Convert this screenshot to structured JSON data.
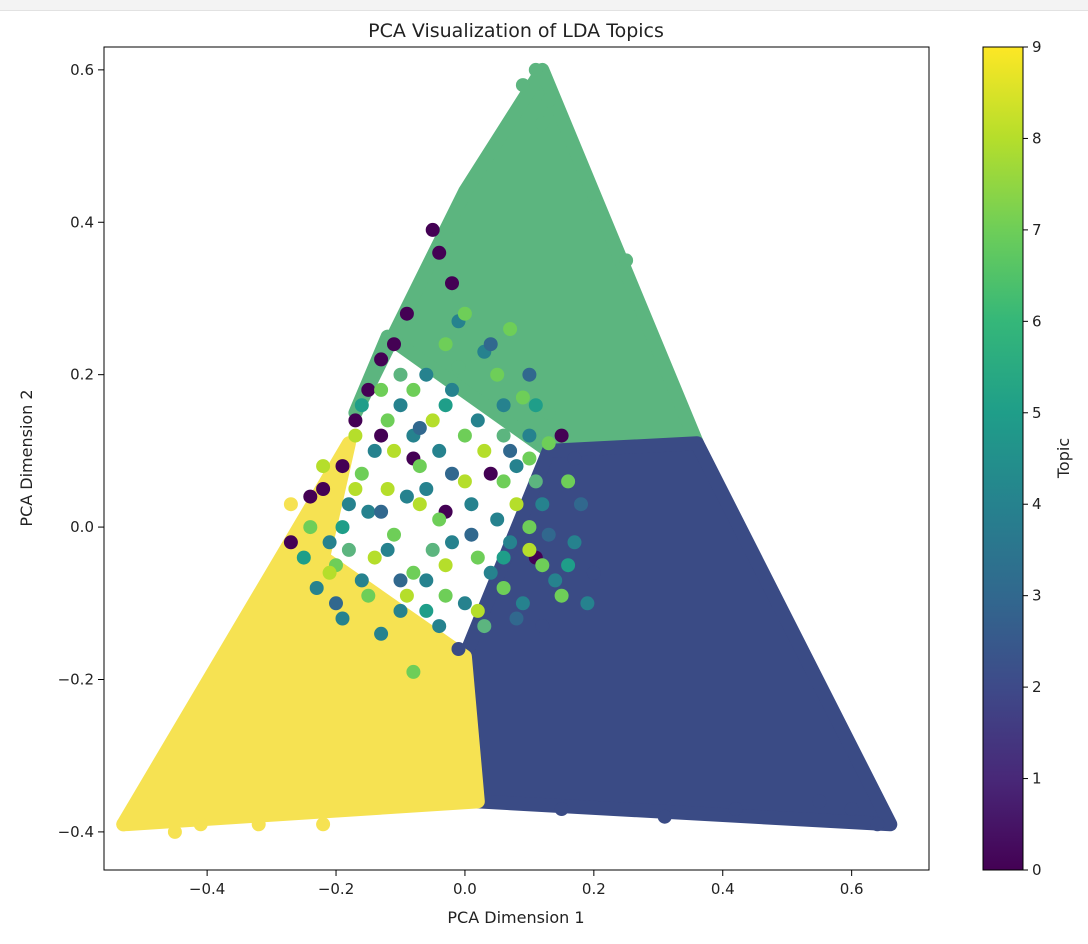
{
  "chart_data": {
    "type": "scatter",
    "title": "PCA Visualization of LDA Topics",
    "xlabel": "PCA Dimension 1",
    "ylabel": "PCA Dimension 2",
    "xlim": [
      -0.56,
      0.72
    ],
    "ylim": [
      -0.45,
      0.63
    ],
    "x_ticks": [
      -0.4,
      -0.2,
      0.0,
      0.2,
      0.4,
      0.6
    ],
    "x_tick_labels": [
      "−0.4",
      "−0.2",
      "0.0",
      "0.2",
      "0.4",
      "0.6"
    ],
    "y_ticks": [
      -0.4,
      -0.2,
      0.0,
      0.2,
      0.4,
      0.6
    ],
    "y_tick_labels": [
      "−0.4",
      "−0.2",
      "0.0",
      "0.2",
      "0.4",
      "0.6"
    ],
    "grid": false,
    "colormap": "viridis",
    "colorbar": {
      "label": "Topic",
      "range": [
        0,
        9
      ],
      "ticks": [
        0,
        1,
        2,
        3,
        4,
        5,
        6,
        7,
        8,
        9
      ],
      "tick_labels": [
        "0",
        "1",
        "2",
        "3",
        "4",
        "5",
        "6",
        "7",
        "8",
        "9"
      ]
    },
    "regions": [
      {
        "topic": 6,
        "polygon": [
          [
            0.12,
            0.6
          ],
          [
            0.36,
            0.11
          ],
          [
            0.13,
            0.1
          ],
          [
            -0.12,
            0.25
          ],
          [
            -0.17,
            0.15
          ],
          [
            0.0,
            0.44
          ]
        ]
      },
      {
        "topic": 2,
        "polygon": [
          [
            0.36,
            0.11
          ],
          [
            0.66,
            -0.39
          ],
          [
            0.02,
            -0.36
          ],
          [
            0.0,
            -0.17
          ],
          [
            0.13,
            0.1
          ]
        ]
      },
      {
        "topic": 9,
        "polygon": [
          [
            -0.53,
            -0.39
          ],
          [
            0.02,
            -0.36
          ],
          [
            0.0,
            -0.17
          ],
          [
            -0.22,
            -0.04
          ],
          [
            -0.18,
            0.11
          ]
        ]
      }
    ],
    "mixed_points": [
      {
        "x": -0.05,
        "y": 0.39,
        "topic": 0
      },
      {
        "x": -0.04,
        "y": 0.36,
        "topic": 0
      },
      {
        "x": -0.02,
        "y": 0.32,
        "topic": 0
      },
      {
        "x": -0.09,
        "y": 0.28,
        "topic": 0
      },
      {
        "x": -0.11,
        "y": 0.24,
        "topic": 0
      },
      {
        "x": -0.13,
        "y": 0.22,
        "topic": 0
      },
      {
        "x": -0.15,
        "y": 0.18,
        "topic": 0
      },
      {
        "x": -0.17,
        "y": 0.14,
        "topic": 0
      },
      {
        "x": -0.19,
        "y": 0.08,
        "topic": 0
      },
      {
        "x": -0.22,
        "y": 0.05,
        "topic": 0
      },
      {
        "x": -0.24,
        "y": 0.04,
        "topic": 0
      },
      {
        "x": -0.27,
        "y": -0.02,
        "topic": 0
      },
      {
        "x": -0.08,
        "y": 0.09,
        "topic": 0
      },
      {
        "x": 0.04,
        "y": 0.07,
        "topic": 0
      },
      {
        "x": -0.03,
        "y": 0.02,
        "topic": 0
      },
      {
        "x": 0.11,
        "y": -0.04,
        "topic": 0
      },
      {
        "x": -0.13,
        "y": 0.12,
        "topic": 0
      },
      {
        "x": 0.15,
        "y": 0.12,
        "topic": 0
      },
      {
        "x": -0.01,
        "y": 0.27,
        "topic": 4
      },
      {
        "x": 0.03,
        "y": 0.23,
        "topic": 4
      },
      {
        "x": -0.06,
        "y": 0.2,
        "topic": 4
      },
      {
        "x": -0.1,
        "y": 0.16,
        "topic": 4
      },
      {
        "x": 0.02,
        "y": 0.14,
        "topic": 4
      },
      {
        "x": -0.14,
        "y": 0.1,
        "topic": 4
      },
      {
        "x": -0.04,
        "y": 0.1,
        "topic": 4
      },
      {
        "x": 0.08,
        "y": 0.08,
        "topic": 4
      },
      {
        "x": -0.18,
        "y": 0.03,
        "topic": 4
      },
      {
        "x": -0.09,
        "y": 0.04,
        "topic": 4
      },
      {
        "x": 0.01,
        "y": 0.03,
        "topic": 4
      },
      {
        "x": 0.12,
        "y": 0.03,
        "topic": 4
      },
      {
        "x": -0.21,
        "y": -0.02,
        "topic": 4
      },
      {
        "x": -0.12,
        "y": -0.03,
        "topic": 4
      },
      {
        "x": -0.02,
        "y": -0.02,
        "topic": 4
      },
      {
        "x": 0.07,
        "y": -0.02,
        "topic": 4
      },
      {
        "x": 0.17,
        "y": -0.02,
        "topic": 4
      },
      {
        "x": -0.16,
        "y": -0.07,
        "topic": 4
      },
      {
        "x": -0.06,
        "y": -0.07,
        "topic": 4
      },
      {
        "x": 0.04,
        "y": -0.06,
        "topic": 4
      },
      {
        "x": 0.14,
        "y": -0.07,
        "topic": 4
      },
      {
        "x": -0.23,
        "y": -0.08,
        "topic": 4
      },
      {
        "x": -0.1,
        "y": -0.11,
        "topic": 4
      },
      {
        "x": 0.0,
        "y": -0.1,
        "topic": 4
      },
      {
        "x": 0.09,
        "y": -0.1,
        "topic": 4
      },
      {
        "x": -0.19,
        "y": -0.12,
        "topic": 4
      },
      {
        "x": 0.19,
        "y": -0.1,
        "topic": 4
      },
      {
        "x": -0.04,
        "y": -0.13,
        "topic": 4
      },
      {
        "x": -0.13,
        "y": -0.14,
        "topic": 4
      },
      {
        "x": -0.06,
        "y": 0.05,
        "topic": 4
      },
      {
        "x": 0.06,
        "y": 0.16,
        "topic": 4
      },
      {
        "x": -0.08,
        "y": 0.12,
        "topic": 4
      },
      {
        "x": 0.1,
        "y": 0.12,
        "topic": 4
      },
      {
        "x": -0.15,
        "y": 0.02,
        "topic": 4
      },
      {
        "x": 0.05,
        "y": 0.01,
        "topic": 4
      },
      {
        "x": -0.02,
        "y": 0.18,
        "topic": 4
      },
      {
        "x": 0.0,
        "y": 0.28,
        "topic": 7
      },
      {
        "x": -0.03,
        "y": 0.24,
        "topic": 7
      },
      {
        "x": 0.05,
        "y": 0.2,
        "topic": 7
      },
      {
        "x": -0.08,
        "y": 0.18,
        "topic": 7
      },
      {
        "x": 0.09,
        "y": 0.17,
        "topic": 7
      },
      {
        "x": -0.12,
        "y": 0.14,
        "topic": 7
      },
      {
        "x": 0.0,
        "y": 0.12,
        "topic": 7
      },
      {
        "x": 0.13,
        "y": 0.11,
        "topic": 7
      },
      {
        "x": -0.07,
        "y": 0.08,
        "topic": 7
      },
      {
        "x": 0.06,
        "y": 0.06,
        "topic": 7
      },
      {
        "x": -0.16,
        "y": 0.07,
        "topic": 7
      },
      {
        "x": 0.16,
        "y": 0.06,
        "topic": 7
      },
      {
        "x": -0.04,
        "y": 0.01,
        "topic": 7
      },
      {
        "x": 0.1,
        "y": 0.0,
        "topic": 7
      },
      {
        "x": -0.11,
        "y": -0.01,
        "topic": 7
      },
      {
        "x": 0.02,
        "y": -0.04,
        "topic": 7
      },
      {
        "x": -0.2,
        "y": -0.05,
        "topic": 7
      },
      {
        "x": 0.12,
        "y": -0.05,
        "topic": 7
      },
      {
        "x": -0.08,
        "y": -0.06,
        "topic": 7
      },
      {
        "x": 0.06,
        "y": -0.08,
        "topic": 7
      },
      {
        "x": -0.15,
        "y": -0.09,
        "topic": 7
      },
      {
        "x": -0.03,
        "y": -0.09,
        "topic": 7
      },
      {
        "x": 0.15,
        "y": -0.09,
        "topic": 7
      },
      {
        "x": -0.24,
        "y": 0.0,
        "topic": 7
      },
      {
        "x": -0.08,
        "y": -0.19,
        "topic": 7
      },
      {
        "x": 0.1,
        "y": 0.09,
        "topic": 7
      },
      {
        "x": 0.07,
        "y": 0.26,
        "topic": 7
      },
      {
        "x": -0.13,
        "y": 0.18,
        "topic": 7
      },
      {
        "x": -0.05,
        "y": 0.14,
        "topic": 8
      },
      {
        "x": -0.11,
        "y": 0.1,
        "topic": 8
      },
      {
        "x": 0.03,
        "y": 0.1,
        "topic": 8
      },
      {
        "x": -0.17,
        "y": 0.05,
        "topic": 8
      },
      {
        "x": -0.07,
        "y": 0.03,
        "topic": 8
      },
      {
        "x": 0.08,
        "y": 0.03,
        "topic": 8
      },
      {
        "x": -0.14,
        "y": -0.04,
        "topic": 8
      },
      {
        "x": -0.03,
        "y": -0.05,
        "topic": 8
      },
      {
        "x": 0.1,
        "y": -0.03,
        "topic": 8
      },
      {
        "x": -0.21,
        "y": -0.06,
        "topic": 8
      },
      {
        "x": -0.09,
        "y": -0.09,
        "topic": 8
      },
      {
        "x": 0.02,
        "y": -0.11,
        "topic": 8
      },
      {
        "x": -0.17,
        "y": 0.12,
        "topic": 8
      },
      {
        "x": -0.22,
        "y": 0.08,
        "topic": 8
      },
      {
        "x": 0.0,
        "y": 0.06,
        "topic": 8
      },
      {
        "x": -0.12,
        "y": 0.05,
        "topic": 8
      },
      {
        "x": -0.01,
        "y": 0.21,
        "topic": 6
      },
      {
        "x": 0.06,
        "y": 0.12,
        "topic": 6
      },
      {
        "x": -0.1,
        "y": 0.2,
        "topic": 6
      },
      {
        "x": 0.11,
        "y": 0.06,
        "topic": 6
      },
      {
        "x": -0.05,
        "y": -0.03,
        "topic": 6
      },
      {
        "x": 0.03,
        "y": -0.13,
        "topic": 6
      },
      {
        "x": -0.18,
        "y": -0.03,
        "topic": 6
      },
      {
        "x": 0.13,
        "y": 0.15,
        "topic": 6
      },
      {
        "x": 0.04,
        "y": 0.24,
        "topic": 3
      },
      {
        "x": -0.07,
        "y": 0.13,
        "topic": 3
      },
      {
        "x": 0.07,
        "y": 0.1,
        "topic": 3
      },
      {
        "x": -0.13,
        "y": 0.02,
        "topic": 3
      },
      {
        "x": 0.01,
        "y": -0.01,
        "topic": 3
      },
      {
        "x": 0.13,
        "y": -0.01,
        "topic": 3
      },
      {
        "x": -0.1,
        "y": -0.07,
        "topic": 3
      },
      {
        "x": 0.08,
        "y": -0.12,
        "topic": 3
      },
      {
        "x": -0.2,
        "y": -0.1,
        "topic": 3
      },
      {
        "x": 0.18,
        "y": 0.03,
        "topic": 3
      },
      {
        "x": -0.02,
        "y": 0.07,
        "topic": 3
      },
      {
        "x": 0.1,
        "y": 0.2,
        "topic": 3
      },
      {
        "x": -0.16,
        "y": 0.16,
        "topic": 5
      },
      {
        "x": -0.03,
        "y": 0.16,
        "topic": 5
      },
      {
        "x": -0.19,
        "y": 0.0,
        "topic": 5
      },
      {
        "x": 0.06,
        "y": -0.04,
        "topic": 5
      },
      {
        "x": -0.06,
        "y": -0.11,
        "topic": 5
      },
      {
        "x": 0.16,
        "y": -0.05,
        "topic": 5
      },
      {
        "x": -0.25,
        "y": -0.04,
        "topic": 5
      },
      {
        "x": 0.11,
        "y": 0.16,
        "topic": 5
      },
      {
        "x": 0.12,
        "y": -0.13,
        "topic": 2
      },
      {
        "x": 0.2,
        "y": -0.06,
        "topic": 2
      },
      {
        "x": -0.01,
        "y": -0.16,
        "topic": 2
      },
      {
        "x": 0.17,
        "y": 0.09,
        "topic": 2
      },
      {
        "x": -0.27,
        "y": 0.03,
        "topic": 9
      },
      {
        "x": -0.22,
        "y": -0.12,
        "topic": 9
      },
      {
        "x": -0.12,
        "y": -0.16,
        "topic": 9
      },
      {
        "x": -0.26,
        "y": -0.08,
        "topic": 9
      },
      {
        "x": 0.12,
        "y": 0.53,
        "topic": 6
      },
      {
        "x": 0.11,
        "y": 0.6,
        "topic": 6
      },
      {
        "x": 0.13,
        "y": 0.56,
        "topic": 6
      },
      {
        "x": 0.2,
        "y": 0.42,
        "topic": 6
      },
      {
        "x": 0.25,
        "y": 0.35,
        "topic": 6
      },
      {
        "x": 0.09,
        "y": 0.58,
        "topic": 6
      },
      {
        "x": 0.64,
        "y": -0.39,
        "topic": 2
      },
      {
        "x": 0.6,
        "y": -0.37,
        "topic": 2
      },
      {
        "x": 0.42,
        "y": -0.37,
        "topic": 2
      },
      {
        "x": 0.31,
        "y": -0.38,
        "topic": 2
      },
      {
        "x": 0.15,
        "y": -0.37,
        "topic": 2
      },
      {
        "x": 0.55,
        "y": -0.36,
        "topic": 2
      },
      {
        "x": -0.53,
        "y": -0.39,
        "topic": 9
      },
      {
        "x": -0.45,
        "y": -0.4,
        "topic": 9
      },
      {
        "x": -0.41,
        "y": -0.39,
        "topic": 9
      },
      {
        "x": -0.32,
        "y": -0.39,
        "topic": 9
      },
      {
        "x": -0.22,
        "y": -0.39,
        "topic": 9
      },
      {
        "x": -0.5,
        "y": -0.38,
        "topic": 9
      }
    ]
  }
}
